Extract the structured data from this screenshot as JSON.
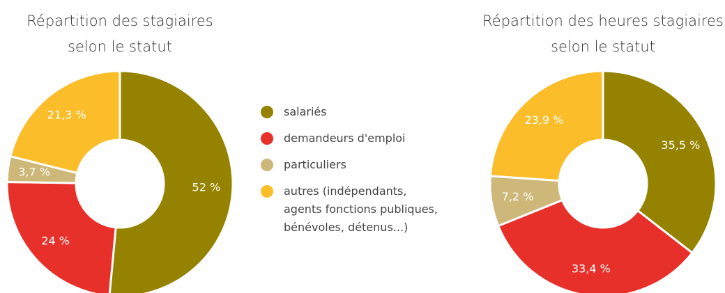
{
  "legend": {
    "labels": [
      "salariés",
      "demandeurs d'emploi",
      "particuliers",
      "autres (indépendants, agents fonctions publiques, bénévoles, détenus...)"
    ],
    "colors": [
      "#958300",
      "#e8302a",
      "#cdb87a",
      "#fbbd2a"
    ]
  },
  "chart_data": [
    {
      "type": "donut",
      "title_lines": [
        "Répartition des stagiaires",
        "selon le statut"
      ],
      "values": [
        52,
        24,
        3.7,
        21.3
      ],
      "value_labels": [
        "52 %",
        "24 %",
        "3,7 %",
        "21,3 %"
      ]
    },
    {
      "type": "donut",
      "title_lines": [
        "Répartition des heures stagiaires",
        "selon le statut"
      ],
      "values": [
        35.5,
        33.4,
        7.2,
        23.9
      ],
      "value_labels": [
        "35,5 %",
        "33,4 %",
        "7,2 %",
        "23,9 %"
      ]
    }
  ]
}
